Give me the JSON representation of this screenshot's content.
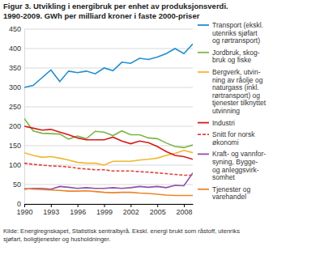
{
  "chart_data": {
    "type": "line",
    "title": "Figur 3. Utvikling i energibruk per enhet av produksjonsverdi.",
    "subtitle": "1990-2009. GWh per milliard kroner i faste 2000-priser",
    "annotations": [
      "Kilde: Energiregnskapet, Statistisk sentralbyrå. Ekskl. energi brukt som råstoff, utenriks\nsjøfart, boligtjenester og husholdninger."
    ],
    "x": [
      1990,
      1991,
      1992,
      1993,
      1994,
      1995,
      1996,
      1997,
      1998,
      1999,
      2000,
      2001,
      2002,
      2003,
      2004,
      2005,
      2006,
      2007,
      2008,
      2009
    ],
    "xlim": [
      1990,
      2009
    ],
    "xticks": [
      1990,
      1993,
      1996,
      1999,
      2002,
      2005,
      2008
    ],
    "ylim": [
      0,
      450
    ],
    "yticks": [
      0,
      50,
      100,
      150,
      200,
      250,
      300,
      350,
      400,
      450
    ],
    "grid": true,
    "legend": "right",
    "series": [
      {
        "name": "Transport (ekskl.\nutenriks sjøfart\nog rørtransport)",
        "color": "#1f8fce",
        "line_style": "solid",
        "values": [
          300,
          305,
          325,
          345,
          315,
          342,
          338,
          342,
          335,
          350,
          343,
          365,
          362,
          375,
          372,
          378,
          387,
          400,
          387,
          412
        ]
      },
      {
        "name": "Jordbruk, skog-\nbruk og fiske",
        "color": "#7ab648",
        "line_style": "solid",
        "values": [
          220,
          188,
          182,
          181,
          180,
          167,
          175,
          168,
          187,
          185,
          176,
          188,
          178,
          178,
          170,
          168,
          157,
          148,
          145,
          152
        ]
      },
      {
        "name": "Bergverk, utvin-\nning av råolje og\nnaturgass (inkl.\nrørtransport) og\ntjenester tilknyttet\nutvinning",
        "color": "#f2b632",
        "line_style": "solid",
        "values": [
          132,
          125,
          120,
          122,
          118,
          113,
          107,
          105,
          105,
          100,
          110,
          110,
          110,
          113,
          115,
          118,
          125,
          130,
          138,
          132
        ]
      },
      {
        "name": "Industri",
        "color": "#d7191c",
        "line_style": "solid",
        "values": [
          200,
          195,
          190,
          192,
          185,
          178,
          170,
          165,
          165,
          165,
          172,
          162,
          155,
          162,
          158,
          148,
          135,
          125,
          122,
          115
        ]
      },
      {
        "name": "Snitt for norsk\nøkonomi",
        "color": "#e0403a",
        "line_style": "dashed",
        "values": [
          105,
          102,
          100,
          98,
          97,
          95,
          92,
          90,
          88,
          88,
          85,
          85,
          85,
          83,
          82,
          80,
          78,
          76,
          74,
          74
        ]
      },
      {
        "name": "Kraft- og vannfor-\nsyning, Bygge-\nog anleggsvirk-\nsomhet",
        "color": "#8f4fa8",
        "line_style": "solid",
        "values": [
          38,
          40,
          40,
          38,
          45,
          43,
          40,
          42,
          40,
          40,
          42,
          40,
          42,
          45,
          43,
          45,
          42,
          48,
          47,
          80
        ]
      },
      {
        "name": "Tjenester og\nvarehandel",
        "color": "#e8862a",
        "line_style": "solid",
        "values": [
          40,
          38,
          37,
          36,
          35,
          33,
          33,
          34,
          32,
          30,
          29,
          30,
          30,
          28,
          27,
          25,
          23,
          22,
          22,
          22
        ]
      }
    ]
  }
}
